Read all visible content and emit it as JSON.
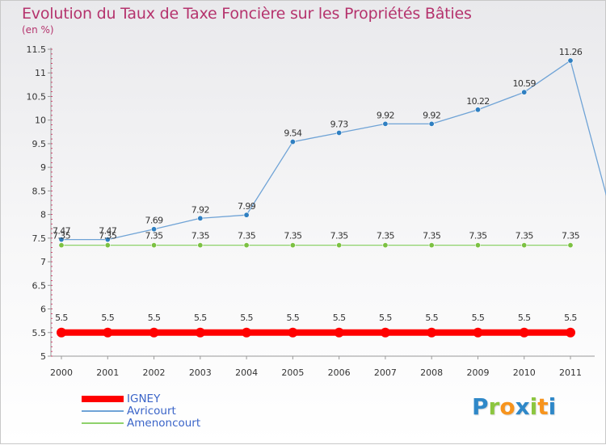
{
  "header": {
    "title": "Evolution du Taux de Taxe Foncière sur les Propriétés Bâties",
    "unit": "(en %)"
  },
  "brand": {
    "letters": [
      "P",
      "r",
      "o",
      "x",
      "i",
      "t",
      "i"
    ],
    "colors": [
      "#2f88c8",
      "#8cc63f",
      "#f7941d",
      "#2f88c8",
      "#8cc63f",
      "#f7941d",
      "#2f88c8"
    ]
  },
  "chart_data": {
    "type": "line",
    "title": "Evolution du Taux de Taxe Foncière sur les Propriétés Bâties",
    "ylabel": "(en %)",
    "xlabel": "",
    "x": [
      "2000",
      "2001",
      "2002",
      "2003",
      "2004",
      "2005",
      "2006",
      "2007",
      "2008",
      "2009",
      "2010",
      "2011"
    ],
    "ylim": [
      5,
      11.5
    ],
    "yticks": [
      "5",
      "5.5",
      "6",
      "6.5",
      "7",
      "7.5",
      "8",
      "8.5",
      "9",
      "9.5",
      "10",
      "10.5",
      "11",
      "11.5"
    ],
    "grid": false,
    "legend_position": "bottom-left",
    "series": [
      {
        "name": "IGNEY",
        "color": "#ff0000",
        "values": [
          5.5,
          5.5,
          5.5,
          5.5,
          5.5,
          5.5,
          5.5,
          5.5,
          5.5,
          5.5,
          5.5,
          5.5
        ],
        "labels": [
          "5.5",
          "5.5",
          "5.5",
          "5.5",
          "5.5",
          "5.5",
          "5.5",
          "5.5",
          "5.5",
          "5.5",
          "5.5",
          "5.5"
        ]
      },
      {
        "name": "Avricourt",
        "color": "#6fa3d6",
        "values": [
          7.47,
          7.47,
          7.69,
          7.92,
          7.99,
          9.54,
          9.73,
          9.92,
          9.92,
          10.22,
          10.59,
          11.26
        ],
        "labels": [
          "7.47",
          "7.47",
          "7.69",
          "7.92",
          "7.99",
          "9.54",
          "9.73",
          "9.92",
          "9.92",
          "10.22",
          "10.59",
          "11.26"
        ]
      },
      {
        "name": "Amenoncourt",
        "color": "#8ed16b",
        "values": [
          7.35,
          7.35,
          7.35,
          7.35,
          7.35,
          7.35,
          7.35,
          7.35,
          7.35,
          7.35,
          7.35,
          7.35
        ],
        "labels": [
          "7.35",
          "7.35",
          "7.35",
          "7.35",
          "7.35",
          "7.35",
          "7.35",
          "7.35",
          "7.35",
          "7.35",
          "7.35",
          "7.35"
        ]
      }
    ]
  }
}
